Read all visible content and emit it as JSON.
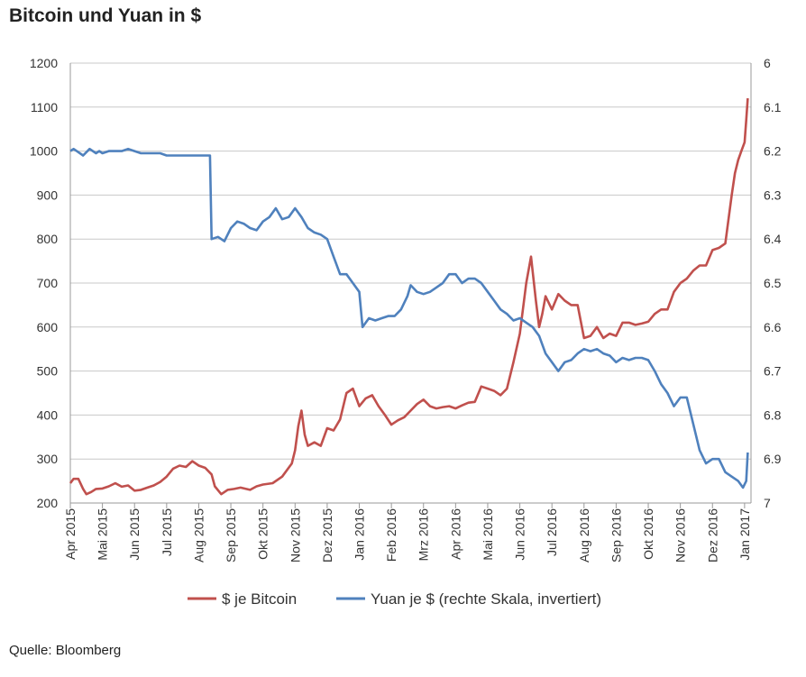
{
  "title": "Bitcoin und Yuan in $",
  "source": "Quelle: Bloomberg",
  "colors": {
    "bitcoin": "#c0504d",
    "yuan": "#4f81bd",
    "grid": "#c8c8c8",
    "axis": "#999999"
  },
  "chart_data": {
    "type": "line",
    "title": "Bitcoin und Yuan in $",
    "x_categories": [
      "Apr 2015",
      "Mai 2015",
      "Jun 2015",
      "Jul 2015",
      "Aug 2015",
      "Sep 2015",
      "Okt 2015",
      "Nov 2015",
      "Dez 2015",
      "Jan 2016",
      "Feb 2016",
      "Mrz 2016",
      "Apr 2016",
      "Mai 2016",
      "Jun 2016",
      "Jul 2016",
      "Aug 2016",
      "Sep 2016",
      "Okt 2016",
      "Nov 2016",
      "Dez 2016",
      "Jan 2017"
    ],
    "x_range": [
      0,
      21.2
    ],
    "y_left": {
      "min": 200,
      "max": 1200,
      "step": 100,
      "ticks": [
        "200",
        "300",
        "400",
        "500",
        "600",
        "700",
        "800",
        "900",
        "1000",
        "1100",
        "1200"
      ]
    },
    "y_right": {
      "min": 6.0,
      "max": 7.0,
      "inverted": true,
      "ticks": [
        "6",
        "6.1",
        "6.2",
        "6.3",
        "6.4",
        "6.5",
        "6.6",
        "6.7",
        "6.8",
        "6.9",
        "7"
      ]
    },
    "grid": true,
    "legend": "bottom",
    "series": [
      {
        "name": "$ je Bitcoin",
        "axis": "left",
        "points": [
          [
            0,
            245
          ],
          [
            0.1,
            255
          ],
          [
            0.25,
            255
          ],
          [
            0.4,
            232
          ],
          [
            0.5,
            220
          ],
          [
            0.65,
            225
          ],
          [
            0.8,
            232
          ],
          [
            1.0,
            233
          ],
          [
            1.2,
            238
          ],
          [
            1.4,
            245
          ],
          [
            1.6,
            237
          ],
          [
            1.8,
            240
          ],
          [
            2.0,
            228
          ],
          [
            2.2,
            230
          ],
          [
            2.4,
            235
          ],
          [
            2.6,
            240
          ],
          [
            2.8,
            248
          ],
          [
            3.0,
            260
          ],
          [
            3.2,
            278
          ],
          [
            3.4,
            285
          ],
          [
            3.6,
            282
          ],
          [
            3.8,
            295
          ],
          [
            4.0,
            285
          ],
          [
            4.2,
            280
          ],
          [
            4.4,
            265
          ],
          [
            4.5,
            238
          ],
          [
            4.7,
            220
          ],
          [
            4.9,
            230
          ],
          [
            5.1,
            232
          ],
          [
            5.3,
            235
          ],
          [
            5.6,
            230
          ],
          [
            5.8,
            238
          ],
          [
            6.0,
            242
          ],
          [
            6.3,
            245
          ],
          [
            6.6,
            260
          ],
          [
            6.9,
            290
          ],
          [
            7.0,
            320
          ],
          [
            7.1,
            375
          ],
          [
            7.2,
            410
          ],
          [
            7.3,
            355
          ],
          [
            7.4,
            330
          ],
          [
            7.6,
            338
          ],
          [
            7.8,
            330
          ],
          [
            8.0,
            370
          ],
          [
            8.2,
            365
          ],
          [
            8.4,
            390
          ],
          [
            8.6,
            450
          ],
          [
            8.8,
            460
          ],
          [
            9.0,
            420
          ],
          [
            9.2,
            438
          ],
          [
            9.4,
            445
          ],
          [
            9.6,
            420
          ],
          [
            9.8,
            400
          ],
          [
            10.0,
            378
          ],
          [
            10.2,
            388
          ],
          [
            10.4,
            395
          ],
          [
            10.6,
            410
          ],
          [
            10.8,
            425
          ],
          [
            11.0,
            435
          ],
          [
            11.2,
            420
          ],
          [
            11.4,
            415
          ],
          [
            11.6,
            418
          ],
          [
            11.8,
            420
          ],
          [
            12.0,
            415
          ],
          [
            12.2,
            422
          ],
          [
            12.4,
            428
          ],
          [
            12.6,
            430
          ],
          [
            12.8,
            465
          ],
          [
            13.0,
            460
          ],
          [
            13.2,
            455
          ],
          [
            13.4,
            445
          ],
          [
            13.6,
            460
          ],
          [
            13.8,
            520
          ],
          [
            14.0,
            585
          ],
          [
            14.2,
            700
          ],
          [
            14.35,
            760
          ],
          [
            14.5,
            660
          ],
          [
            14.6,
            600
          ],
          [
            14.7,
            630
          ],
          [
            14.8,
            670
          ],
          [
            15.0,
            640
          ],
          [
            15.2,
            675
          ],
          [
            15.4,
            660
          ],
          [
            15.6,
            650
          ],
          [
            15.8,
            650
          ],
          [
            16.0,
            575
          ],
          [
            16.2,
            580
          ],
          [
            16.4,
            600
          ],
          [
            16.6,
            575
          ],
          [
            16.8,
            585
          ],
          [
            17.0,
            580
          ],
          [
            17.2,
            610
          ],
          [
            17.4,
            610
          ],
          [
            17.6,
            605
          ],
          [
            17.8,
            608
          ],
          [
            18.0,
            612
          ],
          [
            18.2,
            630
          ],
          [
            18.4,
            640
          ],
          [
            18.6,
            640
          ],
          [
            18.8,
            680
          ],
          [
            19.0,
            700
          ],
          [
            19.2,
            710
          ],
          [
            19.4,
            728
          ],
          [
            19.6,
            740
          ],
          [
            19.8,
            740
          ],
          [
            20.0,
            775
          ],
          [
            20.2,
            780
          ],
          [
            20.4,
            790
          ],
          [
            20.6,
            900
          ],
          [
            20.7,
            950
          ],
          [
            20.8,
            980
          ],
          [
            20.9,
            1000
          ],
          [
            21.0,
            1020
          ],
          [
            21.05,
            1070
          ],
          [
            21.1,
            1120
          ]
        ]
      },
      {
        "name": "Yuan je $ (rechte Skala, invertiert)",
        "axis": "right",
        "points": [
          [
            0,
            6.2
          ],
          [
            0.1,
            6.195
          ],
          [
            0.2,
            6.2
          ],
          [
            0.4,
            6.21
          ],
          [
            0.6,
            6.195
          ],
          [
            0.8,
            6.205
          ],
          [
            0.9,
            6.2
          ],
          [
            1.0,
            6.205
          ],
          [
            1.2,
            6.2
          ],
          [
            1.4,
            6.2
          ],
          [
            1.6,
            6.2
          ],
          [
            1.8,
            6.195
          ],
          [
            2.0,
            6.2
          ],
          [
            2.2,
            6.205
          ],
          [
            2.5,
            6.205
          ],
          [
            2.8,
            6.205
          ],
          [
            3.0,
            6.21
          ],
          [
            3.4,
            6.21
          ],
          [
            3.8,
            6.21
          ],
          [
            4.2,
            6.21
          ],
          [
            4.35,
            6.21
          ],
          [
            4.4,
            6.4
          ],
          [
            4.6,
            6.395
          ],
          [
            4.8,
            6.405
          ],
          [
            5.0,
            6.375
          ],
          [
            5.2,
            6.36
          ],
          [
            5.4,
            6.365
          ],
          [
            5.6,
            6.375
          ],
          [
            5.8,
            6.38
          ],
          [
            6.0,
            6.36
          ],
          [
            6.2,
            6.35
          ],
          [
            6.4,
            6.33
          ],
          [
            6.6,
            6.355
          ],
          [
            6.8,
            6.35
          ],
          [
            7.0,
            6.33
          ],
          [
            7.2,
            6.35
          ],
          [
            7.4,
            6.375
          ],
          [
            7.6,
            6.385
          ],
          [
            7.8,
            6.39
          ],
          [
            8.0,
            6.4
          ],
          [
            8.2,
            6.44
          ],
          [
            8.4,
            6.48
          ],
          [
            8.6,
            6.48
          ],
          [
            8.8,
            6.5
          ],
          [
            9.0,
            6.52
          ],
          [
            9.1,
            6.6
          ],
          [
            9.3,
            6.58
          ],
          [
            9.5,
            6.585
          ],
          [
            9.7,
            6.58
          ],
          [
            9.9,
            6.575
          ],
          [
            10.1,
            6.575
          ],
          [
            10.3,
            6.56
          ],
          [
            10.5,
            6.53
          ],
          [
            10.6,
            6.505
          ],
          [
            10.8,
            6.52
          ],
          [
            11.0,
            6.525
          ],
          [
            11.2,
            6.52
          ],
          [
            11.4,
            6.51
          ],
          [
            11.6,
            6.5
          ],
          [
            11.8,
            6.48
          ],
          [
            12.0,
            6.48
          ],
          [
            12.2,
            6.5
          ],
          [
            12.4,
            6.49
          ],
          [
            12.6,
            6.49
          ],
          [
            12.8,
            6.5
          ],
          [
            13.0,
            6.52
          ],
          [
            13.2,
            6.54
          ],
          [
            13.4,
            6.56
          ],
          [
            13.6,
            6.57
          ],
          [
            13.8,
            6.585
          ],
          [
            14.0,
            6.58
          ],
          [
            14.2,
            6.59
          ],
          [
            14.4,
            6.6
          ],
          [
            14.6,
            6.62
          ],
          [
            14.8,
            6.66
          ],
          [
            15.0,
            6.68
          ],
          [
            15.2,
            6.7
          ],
          [
            15.4,
            6.68
          ],
          [
            15.6,
            6.675
          ],
          [
            15.8,
            6.66
          ],
          [
            16.0,
            6.65
          ],
          [
            16.2,
            6.655
          ],
          [
            16.4,
            6.65
          ],
          [
            16.6,
            6.66
          ],
          [
            16.8,
            6.665
          ],
          [
            17.0,
            6.68
          ],
          [
            17.2,
            6.67
          ],
          [
            17.4,
            6.675
          ],
          [
            17.6,
            6.67
          ],
          [
            17.8,
            6.67
          ],
          [
            18.0,
            6.675
          ],
          [
            18.2,
            6.7
          ],
          [
            18.4,
            6.73
          ],
          [
            18.6,
            6.75
          ],
          [
            18.8,
            6.78
          ],
          [
            19.0,
            6.76
          ],
          [
            19.2,
            6.76
          ],
          [
            19.4,
            6.82
          ],
          [
            19.6,
            6.88
          ],
          [
            19.8,
            6.91
          ],
          [
            20.0,
            6.9
          ],
          [
            20.2,
            6.9
          ],
          [
            20.4,
            6.93
          ],
          [
            20.6,
            6.94
          ],
          [
            20.8,
            6.95
          ],
          [
            20.95,
            6.965
          ],
          [
            21.05,
            6.95
          ],
          [
            21.1,
            6.885
          ]
        ]
      }
    ]
  }
}
